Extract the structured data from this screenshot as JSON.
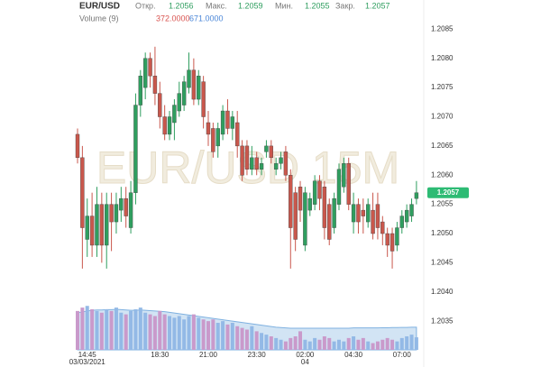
{
  "header": {
    "symbol": "EUR/USD",
    "volume_label": "Volume (9)",
    "open_label": "Откр.",
    "open": 1.2056,
    "high_label": "Макс.",
    "high": 1.2059,
    "low_label": "Мин.",
    "low": 1.2055,
    "close_label": "Закр.",
    "close": 1.2057,
    "volume": {
      "value": 372,
      "label": "372.0000"
    },
    "volume_ma": {
      "value": 671,
      "label": "671.0000"
    }
  },
  "chart_data": {
    "type": "candlestick",
    "watermark": "EUR/USD 15M",
    "categories": [
      null,
      null,
      "14:45",
      null,
      null,
      null,
      null,
      null,
      null,
      null,
      null,
      null,
      null,
      null,
      null,
      null,
      null,
      "18:30",
      null,
      null,
      null,
      null,
      null,
      null,
      null,
      null,
      null,
      "21:00",
      null,
      null,
      null,
      null,
      null,
      null,
      null,
      null,
      null,
      "23:30",
      null,
      null,
      null,
      null,
      null,
      null,
      null,
      null,
      null,
      "02:00",
      null,
      null,
      null,
      null,
      null,
      null,
      null,
      null,
      null,
      "04:30",
      null,
      null,
      null,
      null,
      null,
      null,
      null,
      null,
      null,
      "07:00",
      null,
      null,
      null
    ],
    "sublabels": [
      null,
      null,
      "03/03/2021",
      null,
      null,
      null,
      null,
      null,
      null,
      null,
      null,
      null,
      null,
      null,
      null,
      null,
      null,
      null,
      null,
      null,
      null,
      null,
      null,
      null,
      null,
      null,
      null,
      null,
      null,
      null,
      null,
      null,
      null,
      null,
      null,
      null,
      null,
      null,
      null,
      null,
      null,
      null,
      null,
      null,
      null,
      null,
      null,
      "04",
      null,
      null,
      null,
      null,
      null,
      null,
      null,
      null,
      null,
      null,
      null,
      null,
      null,
      null,
      null,
      null,
      null,
      null,
      null,
      null,
      null,
      null,
      null
    ],
    "open": [
      1.2067,
      1.2063,
      1.2049,
      1.2053,
      1.2048,
      1.2055,
      1.2048,
      1.2055,
      1.2052,
      1.2054,
      1.2056,
      1.2051,
      1.2057,
      1.2072,
      1.2075,
      1.208,
      1.2077,
      1.2074,
      1.207,
      1.2067,
      1.2069,
      1.2071,
      1.2072,
      1.2075,
      1.2078,
      1.2073,
      1.2076,
      1.2069,
      1.2068,
      1.2065,
      1.2067,
      1.2071,
      1.2068,
      1.2069,
      1.2065,
      1.2065,
      1.2061,
      1.2063,
      1.2061,
      1.2064,
      1.2065,
      1.2061,
      1.2062,
      1.2064,
      1.206,
      1.2057,
      1.2058,
      1.2048,
      1.2054,
      1.2055,
      1.2059,
      1.2058,
      1.2055,
      1.2051,
      1.2055,
      1.2058,
      1.2062,
      1.2052,
      1.2055,
      1.2054,
      1.2052,
      1.2054,
      1.2055,
      1.2052,
      1.205,
      1.205,
      1.2048,
      1.2051,
      1.2052,
      1.2053,
      1.2056
    ],
    "high": [
      1.2068,
      1.2065,
      1.2056,
      1.2057,
      1.2058,
      1.2057,
      1.2057,
      1.2057,
      1.2057,
      1.2058,
      1.2058,
      1.2059,
      1.2074,
      1.2078,
      1.2081,
      1.2081,
      1.2082,
      1.2076,
      1.2072,
      1.2071,
      1.2073,
      1.2076,
      1.2077,
      1.2081,
      1.208,
      1.2078,
      1.2077,
      1.2071,
      1.2069,
      1.2069,
      1.2072,
      1.2073,
      1.2071,
      1.2071,
      1.2066,
      1.2066,
      1.2065,
      1.2064,
      1.2063,
      1.2066,
      1.2066,
      1.2063,
      1.2064,
      1.2065,
      1.2061,
      1.2058,
      1.2059,
      1.2058,
      1.2057,
      1.206,
      1.206,
      1.2059,
      1.2056,
      1.2057,
      1.2062,
      1.2063,
      1.2063,
      1.2057,
      1.2056,
      1.2056,
      1.2056,
      1.2057,
      1.2057,
      1.2053,
      1.2051,
      1.2051,
      1.2052,
      1.2054,
      1.2055,
      1.2056,
      1.2059
    ],
    "low": [
      1.2062,
      1.2044,
      1.2046,
      1.2046,
      1.2046,
      1.2045,
      1.2044,
      1.2047,
      1.205,
      1.2052,
      1.2051,
      1.205,
      1.2055,
      1.207,
      1.2073,
      1.2075,
      1.2072,
      1.2068,
      1.2066,
      1.2066,
      1.2066,
      1.207,
      1.2071,
      1.2074,
      1.2072,
      1.2072,
      1.2068,
      1.2065,
      1.2063,
      1.2063,
      1.2066,
      1.2067,
      1.2066,
      1.2063,
      1.2059,
      1.206,
      1.206,
      1.206,
      1.206,
      1.2063,
      1.2062,
      1.206,
      1.2061,
      1.2059,
      1.2044,
      1.2047,
      1.2052,
      1.2047,
      1.2053,
      1.2054,
      1.2054,
      1.2049,
      1.2048,
      1.205,
      1.2054,
      1.2057,
      1.2054,
      1.205,
      1.205,
      1.205,
      1.2051,
      1.2049,
      1.2049,
      1.2048,
      1.2046,
      1.2044,
      1.2047,
      1.205,
      1.2051,
      1.2052,
      1.2055
    ],
    "close": [
      1.2063,
      1.2051,
      1.2053,
      1.2048,
      1.2055,
      1.2048,
      1.2055,
      1.2052,
      1.2055,
      1.2056,
      1.2053,
      1.2057,
      1.2072,
      1.2077,
      1.208,
      1.2077,
      1.2074,
      1.207,
      1.2067,
      1.207,
      1.2072,
      1.2074,
      1.2076,
      1.2078,
      1.2073,
      1.2077,
      1.207,
      1.2067,
      1.2064,
      1.2068,
      1.2071,
      1.2068,
      1.207,
      1.2065,
      1.206,
      1.2061,
      1.2063,
      1.2061,
      1.2062,
      1.2065,
      1.2063,
      1.2062,
      1.2063,
      1.206,
      1.2051,
      1.2049,
      1.2054,
      1.2057,
      1.2056,
      1.2059,
      1.2056,
      1.2051,
      1.2049,
      1.2056,
      1.2061,
      1.2062,
      1.2055,
      1.2055,
      1.2052,
      1.2053,
      1.2055,
      1.205,
      1.2051,
      1.205,
      1.2048,
      1.2047,
      1.2051,
      1.2053,
      1.2054,
      1.2055,
      1.2057
    ],
    "volume": [
      1150,
      1250,
      1300,
      1200,
      1150,
      1100,
      1200,
      1150,
      1250,
      1100,
      1050,
      1150,
      1200,
      1250,
      1100,
      1050,
      1000,
      1150,
      1050,
      1000,
      950,
      1000,
      900,
      1000,
      1050,
      950,
      900,
      850,
      900,
      800,
      850,
      750,
      800,
      700,
      650,
      600,
      700,
      550,
      500,
      450,
      400,
      350,
      300,
      250,
      350,
      400,
      550,
      300,
      250,
      350,
      300,
      400,
      350,
      250,
      300,
      250,
      350,
      400,
      300,
      350,
      250,
      200,
      250,
      300,
      350,
      300,
      250,
      350,
      400,
      450,
      372
    ],
    "volume_ma": [
      1100,
      1120,
      1150,
      1170,
      1180,
      1180,
      1190,
      1190,
      1200,
      1190,
      1180,
      1170,
      1170,
      1180,
      1170,
      1160,
      1150,
      1140,
      1130,
      1110,
      1090,
      1070,
      1050,
      1030,
      1010,
      990,
      970,
      950,
      930,
      910,
      890,
      870,
      850,
      830,
      810,
      790,
      770,
      750,
      730,
      710,
      690,
      670,
      660,
      650,
      640,
      640,
      640,
      640,
      640,
      640,
      640,
      640,
      640,
      640,
      640,
      640,
      640,
      650,
      650,
      650,
      650,
      650,
      650,
      655,
      655,
      660,
      660,
      665,
      665,
      670,
      671
    ],
    "up_color": "#2f9e5f",
    "down_color": "#c9574c",
    "volume_up_color": "#93b9e6",
    "volume_down_color": "#c99acb",
    "volume_ma_color": "#7fb1e0",
    "volume_lim": [
      0,
      4000
    ],
    "ylim": [
      1.2029,
      1.209
    ],
    "yticks": [
      1.2035,
      {
        "value": 1.204,
        "label": "1.2040"
      },
      1.2045,
      {
        "value": 1.205,
        "label": "1.2050"
      },
      1.2055,
      {
        "value": 1.206,
        "label": "1.2060"
      },
      1.2065,
      {
        "value": 1.207,
        "label": "1.2070"
      },
      1.2075,
      {
        "value": 1.208,
        "label": "1.2080"
      },
      1.2085
    ],
    "last_price": 1.2057,
    "last_price_color": "#2dbb74"
  }
}
